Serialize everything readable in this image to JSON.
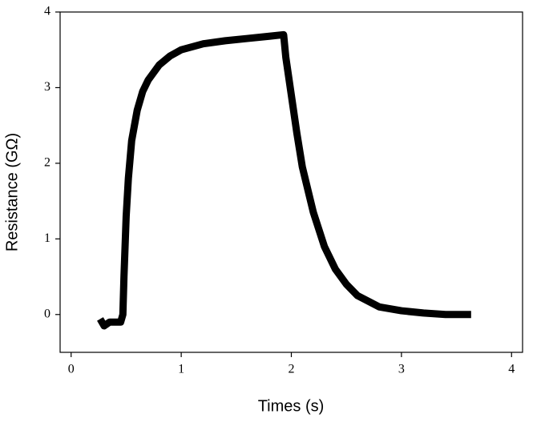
{
  "chart_data": {
    "type": "line",
    "x_label": "Times (s)",
    "y_label": "Resistance (GΩ)",
    "x": [
      0.28,
      0.3,
      0.35,
      0.4,
      0.45,
      0.47,
      0.48,
      0.5,
      0.52,
      0.55,
      0.6,
      0.65,
      0.7,
      0.8,
      0.9,
      1.0,
      1.2,
      1.4,
      1.6,
      1.8,
      1.93,
      1.95,
      2.0,
      2.05,
      2.1,
      2.2,
      2.3,
      2.4,
      2.5,
      2.6,
      2.8,
      3.0,
      3.2,
      3.4,
      3.6
    ],
    "series": [
      {
        "color": "#000000",
        "values": [
          -0.1,
          -0.15,
          -0.1,
          -0.1,
          -0.1,
          0.0,
          0.5,
          1.3,
          1.8,
          2.3,
          2.7,
          2.95,
          3.1,
          3.3,
          3.42,
          3.5,
          3.58,
          3.62,
          3.65,
          3.68,
          3.7,
          3.4,
          2.9,
          2.4,
          1.95,
          1.35,
          0.9,
          0.6,
          0.4,
          0.25,
          0.1,
          0.05,
          0.02,
          0.0,
          0.0
        ]
      }
    ],
    "xlim": [
      -0.1,
      4.1
    ],
    "ylim": [
      -0.5,
      4
    ],
    "xticks": [
      0,
      1,
      2,
      3,
      4
    ],
    "yticks": [
      0,
      1,
      2,
      3,
      4
    ]
  }
}
